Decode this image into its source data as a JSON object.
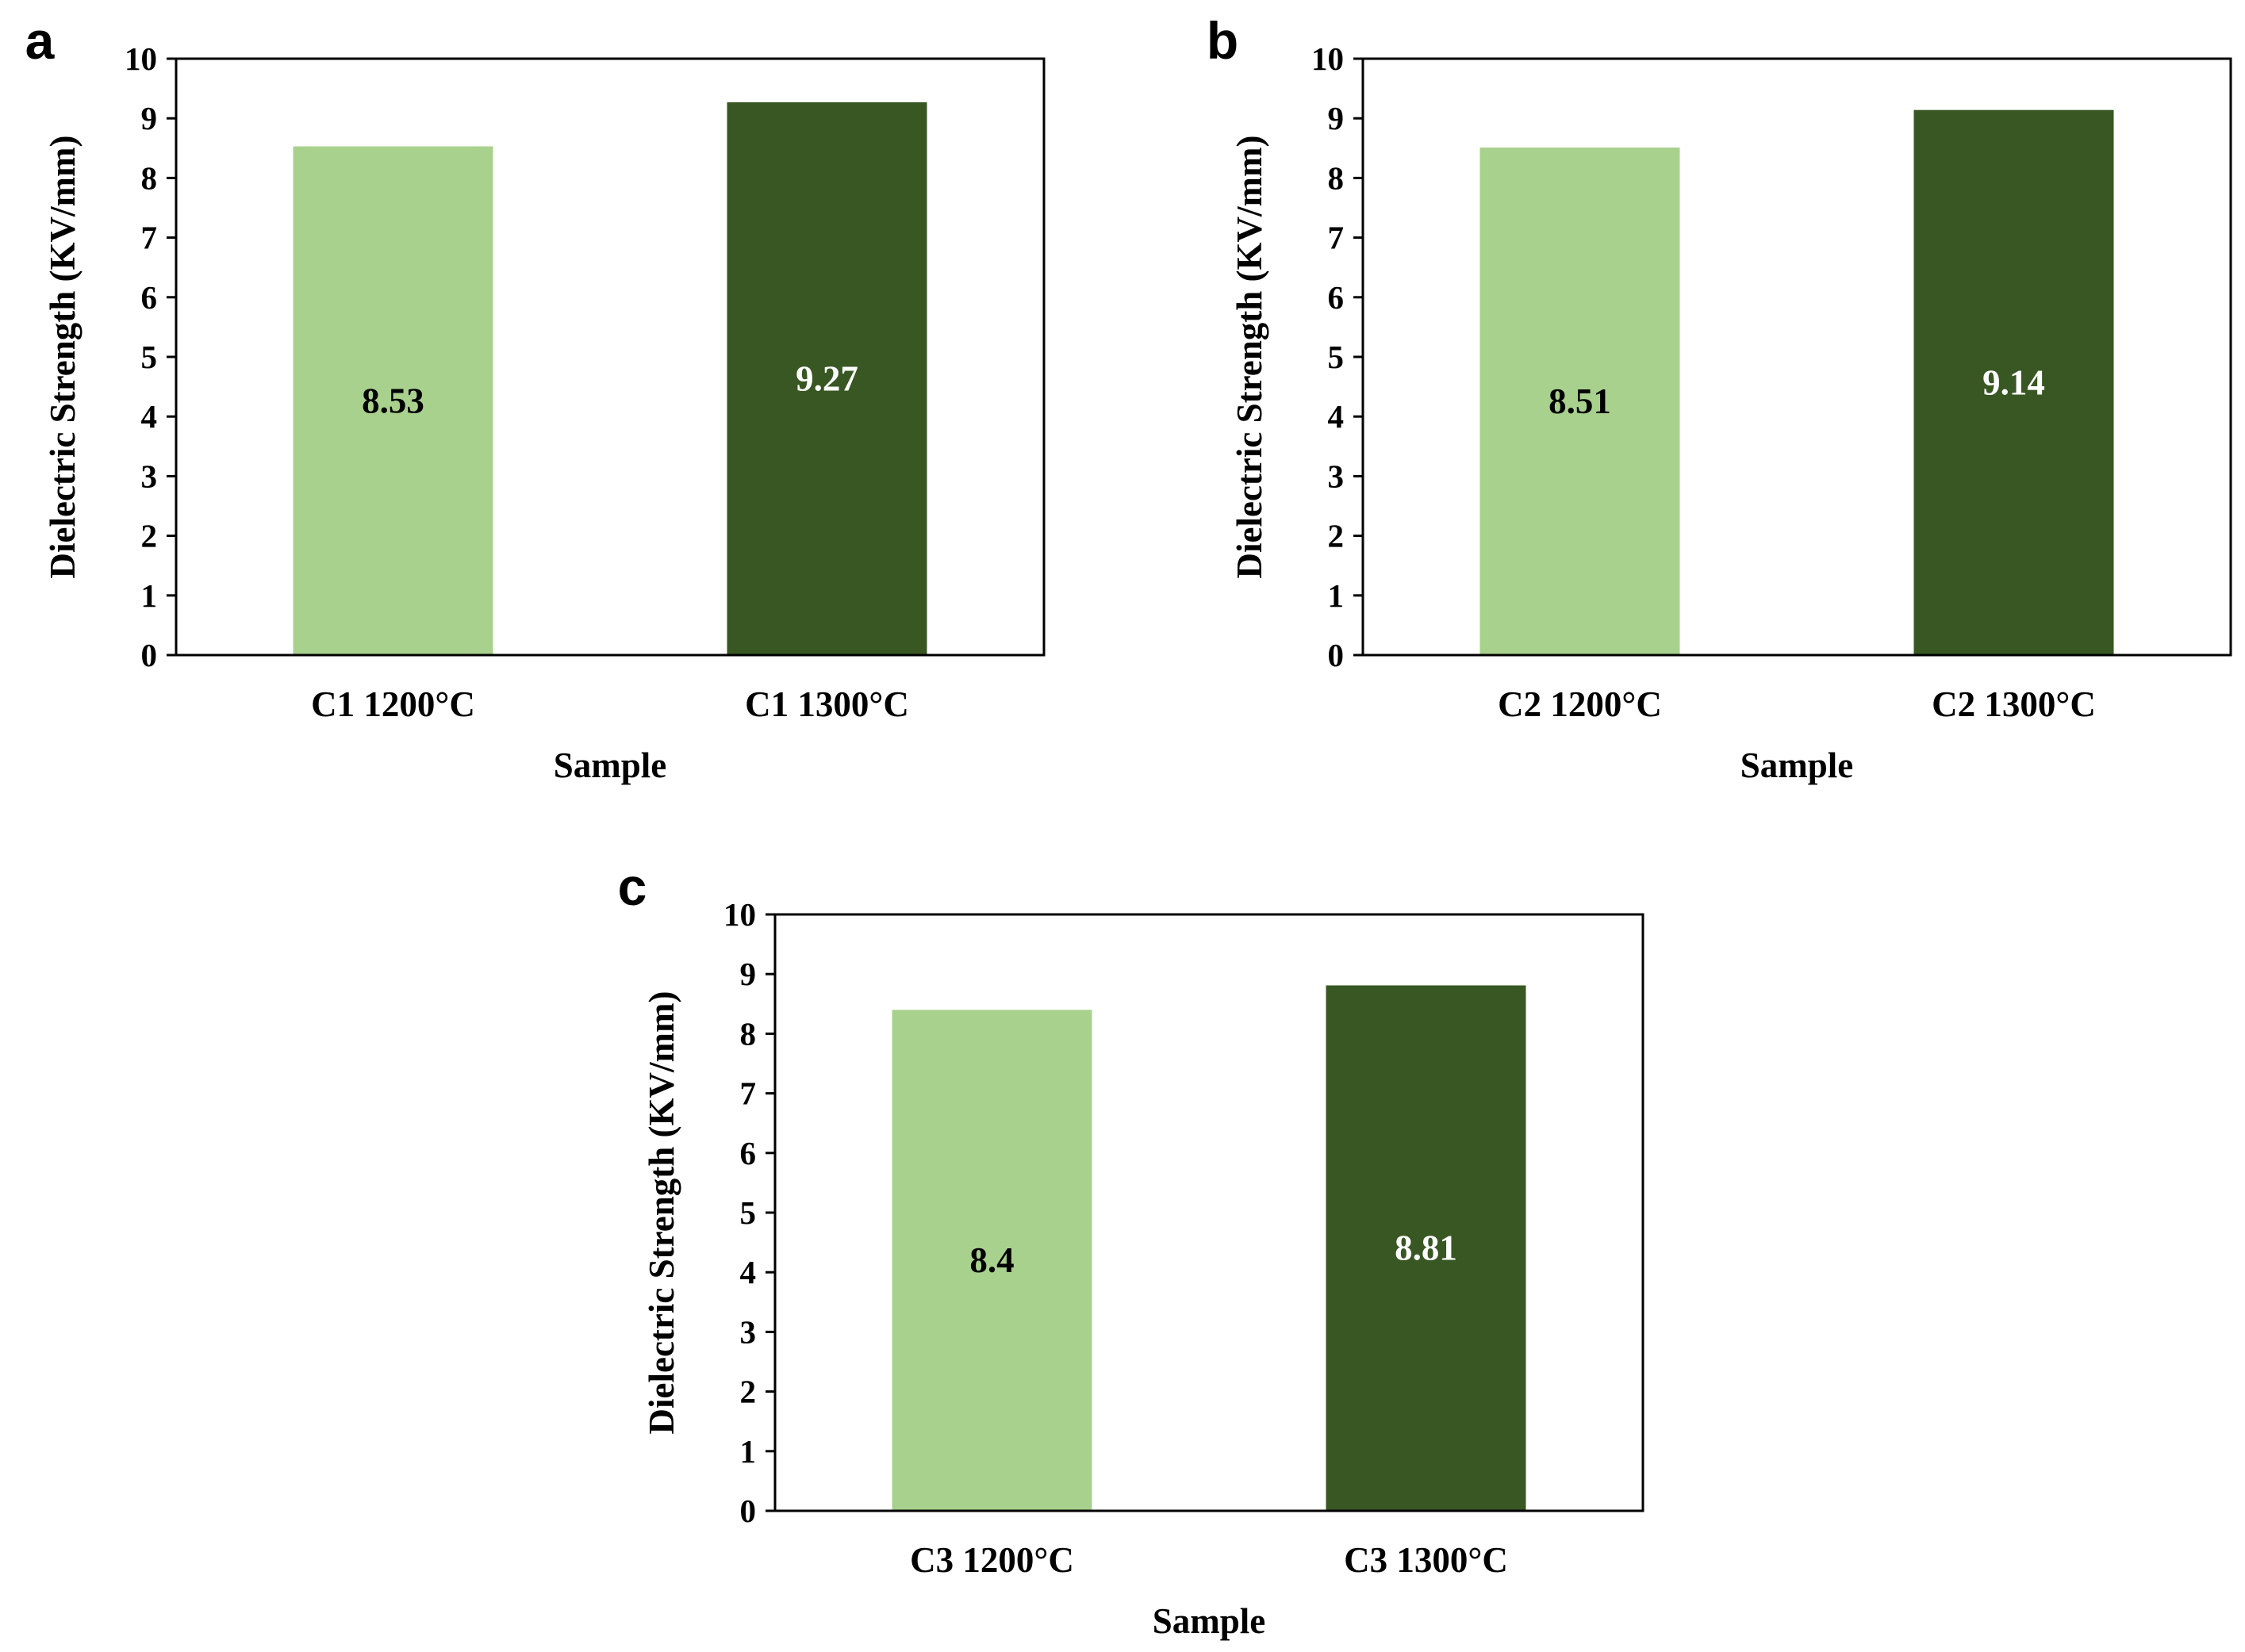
{
  "colors": {
    "light": "#a9d18e",
    "dark": "#385723",
    "axis": "#000000"
  },
  "chart_data": [
    {
      "type": "bar",
      "panel": "a",
      "categories": [
        "C1 1200°C",
        "C1 1300°C"
      ],
      "values": [
        8.53,
        9.27
      ],
      "data_labels": [
        "8.53",
        "9.27"
      ],
      "xlabel": "Sample",
      "ylabel": "Dielectric Strength (KV/mm)",
      "ylim": [
        0,
        10
      ],
      "yticks": [
        "0",
        "1",
        "2",
        "3",
        "4",
        "5",
        "6",
        "7",
        "8",
        "9",
        "10"
      ],
      "grid": false
    },
    {
      "type": "bar",
      "panel": "b",
      "categories": [
        "C2 1200°C",
        "C2 1300°C"
      ],
      "values": [
        8.51,
        9.14
      ],
      "data_labels": [
        "8.51",
        "9.14"
      ],
      "xlabel": "Sample",
      "ylabel": "Dielectric Strength (KV/mm)",
      "ylim": [
        0,
        10
      ],
      "yticks": [
        "0",
        "1",
        "2",
        "3",
        "4",
        "5",
        "6",
        "7",
        "8",
        "9",
        "10"
      ],
      "grid": false
    },
    {
      "type": "bar",
      "panel": "c",
      "categories": [
        "C3 1200°C",
        "C3 1300°C"
      ],
      "values": [
        8.4,
        8.81
      ],
      "data_labels": [
        "8.4",
        "8.81"
      ],
      "xlabel": "Sample",
      "ylabel": "Dielectric Strength (KV/mm)",
      "ylim": [
        0,
        10
      ],
      "yticks": [
        "0",
        "1",
        "2",
        "3",
        "4",
        "5",
        "6",
        "7",
        "8",
        "9",
        "10"
      ],
      "grid": false
    }
  ]
}
